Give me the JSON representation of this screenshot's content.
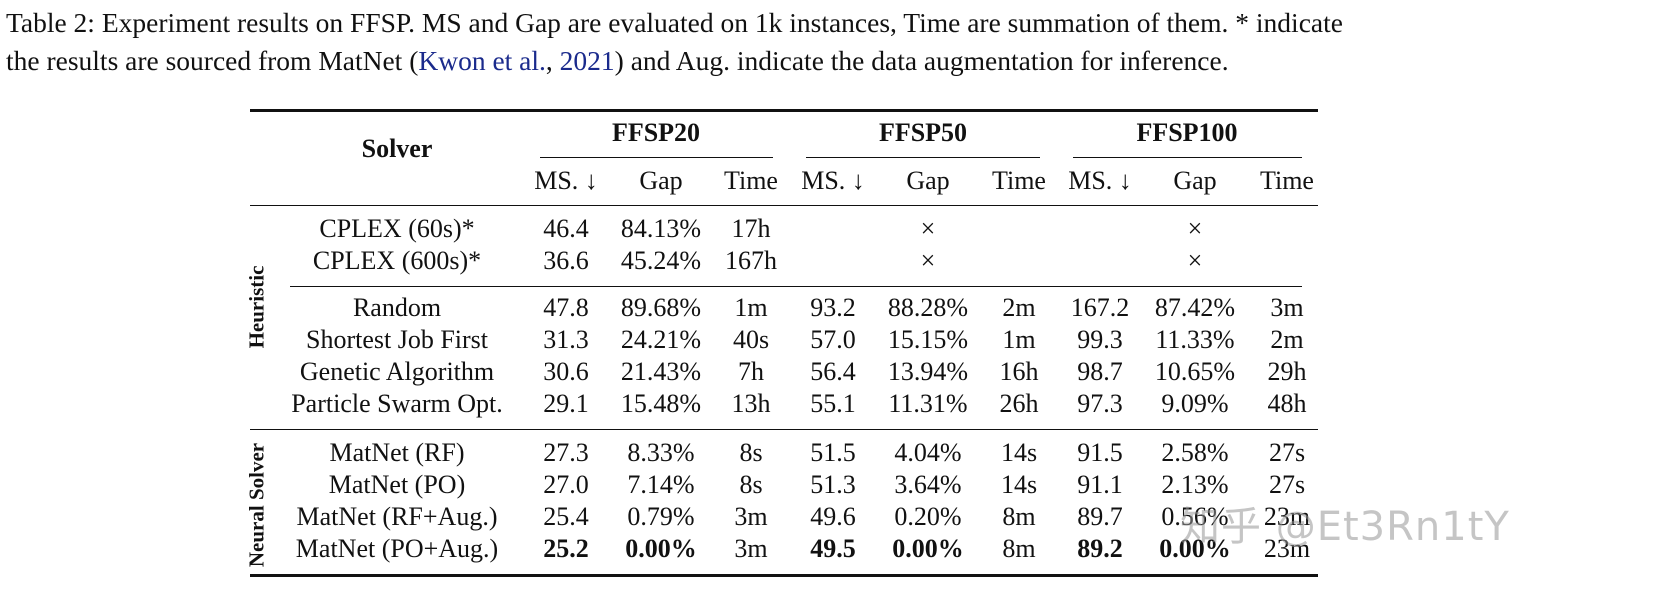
{
  "caption": {
    "line1": "Table 2: Experiment results on FFSP. MS and Gap are evaluated on 1k instances, Time are summation of them. * indicate",
    "line2_pre": "the results are sourced from MatNet (",
    "line2_cite_author": "Kwon et al.",
    "line2_cite_sep": ", ",
    "line2_cite_year": "2021",
    "line2_post": ") and Aug. indicate the data augmentation for inference."
  },
  "table": {
    "solver_header": "Solver",
    "groups": [
      "FFSP20",
      "FFSP50",
      "FFSP100"
    ],
    "subheaders": [
      "MS. ↓",
      "Gap",
      "Time"
    ],
    "categories": [
      "Heuristic",
      "Neural Solver"
    ],
    "not_available_symbol": "×",
    "rows": [
      {
        "solver": "CPLEX (60s)*",
        "category": "Heuristic",
        "ffsp20": {
          "ms": "46.4",
          "gap": "84.13%",
          "time": "17h"
        },
        "ffsp50": "×",
        "ffsp100": "×"
      },
      {
        "solver": "CPLEX (600s)*",
        "category": "Heuristic",
        "ffsp20": {
          "ms": "36.6",
          "gap": "45.24%",
          "time": "167h"
        },
        "ffsp50": "×",
        "ffsp100": "×"
      },
      {
        "solver": "Random",
        "category": "Heuristic",
        "ffsp20": {
          "ms": "47.8",
          "gap": "89.68%",
          "time": "1m"
        },
        "ffsp50": {
          "ms": "93.2",
          "gap": "88.28%",
          "time": "2m"
        },
        "ffsp100": {
          "ms": "167.2",
          "gap": "87.42%",
          "time": "3m"
        }
      },
      {
        "solver": "Shortest Job First",
        "category": "Heuristic",
        "ffsp20": {
          "ms": "31.3",
          "gap": "24.21%",
          "time": "40s"
        },
        "ffsp50": {
          "ms": "57.0",
          "gap": "15.15%",
          "time": "1m"
        },
        "ffsp100": {
          "ms": "99.3",
          "gap": "11.33%",
          "time": "2m"
        }
      },
      {
        "solver": "Genetic Algorithm",
        "category": "Heuristic",
        "ffsp20": {
          "ms": "30.6",
          "gap": "21.43%",
          "time": "7h"
        },
        "ffsp50": {
          "ms": "56.4",
          "gap": "13.94%",
          "time": "16h"
        },
        "ffsp100": {
          "ms": "98.7",
          "gap": "10.65%",
          "time": "29h"
        }
      },
      {
        "solver": "Particle Swarm Opt.",
        "category": "Heuristic",
        "ffsp20": {
          "ms": "29.1",
          "gap": "15.48%",
          "time": "13h"
        },
        "ffsp50": {
          "ms": "55.1",
          "gap": "11.31%",
          "time": "26h"
        },
        "ffsp100": {
          "ms": "97.3",
          "gap": "9.09%",
          "time": "48h"
        }
      },
      {
        "solver": "MatNet (RF)",
        "category": "Neural Solver",
        "ffsp20": {
          "ms": "27.3",
          "gap": "8.33%",
          "time": "8s"
        },
        "ffsp50": {
          "ms": "51.5",
          "gap": "4.04%",
          "time": "14s"
        },
        "ffsp100": {
          "ms": "91.5",
          "gap": "2.58%",
          "time": "27s"
        }
      },
      {
        "solver": "MatNet (PO)",
        "category": "Neural Solver",
        "ffsp20": {
          "ms": "27.0",
          "gap": "7.14%",
          "time": "8s"
        },
        "ffsp50": {
          "ms": "51.3",
          "gap": "3.64%",
          "time": "14s"
        },
        "ffsp100": {
          "ms": "91.1",
          "gap": "2.13%",
          "time": "27s"
        }
      },
      {
        "solver": "MatNet (RF+Aug.)",
        "category": "Neural Solver",
        "ffsp20": {
          "ms": "25.4",
          "gap": "0.79%",
          "time": "3m"
        },
        "ffsp50": {
          "ms": "49.6",
          "gap": "0.20%",
          "time": "8m"
        },
        "ffsp100": {
          "ms": "89.7",
          "gap": "0.56%",
          "time": "23m"
        }
      },
      {
        "solver": "MatNet (PO+Aug.)",
        "category": "Neural Solver",
        "best": true,
        "ffsp20": {
          "ms": "25.2",
          "gap": "0.00%",
          "time": "3m"
        },
        "ffsp50": {
          "ms": "49.5",
          "gap": "0.00%",
          "time": "8m"
        },
        "ffsp100": {
          "ms": "89.2",
          "gap": "0.00%",
          "time": "23m"
        }
      }
    ]
  },
  "watermark": "知乎 @Et3Rn1tY"
}
